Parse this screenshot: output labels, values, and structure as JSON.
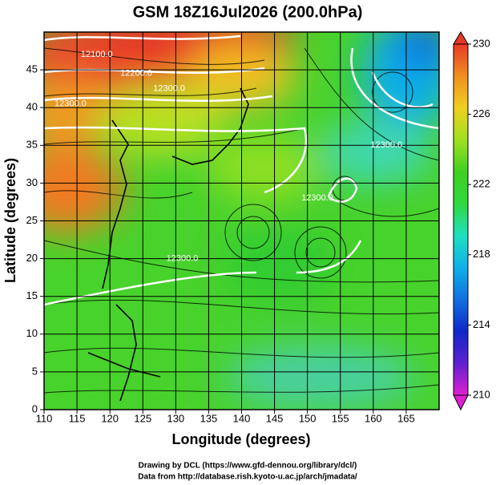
{
  "chart_data": {
    "type": "map",
    "title": "GSM 18Z16Jul2026 (200.0hPa)",
    "x_label": "Longitude (degrees)",
    "y_label": "Latitude  (degrees)",
    "xlim": [
      110,
      170
    ],
    "xticks": [
      110,
      115,
      120,
      125,
      130,
      135,
      140,
      145,
      150,
      155,
      160,
      165
    ],
    "ylim": [
      0,
      50
    ],
    "yticks": [
      0,
      5,
      10,
      15,
      20,
      25,
      30,
      35,
      40,
      45
    ],
    "grid": true,
    "colorbar": {
      "lim": [
        210,
        230
      ],
      "ticks": [
        210,
        214,
        218,
        222,
        226,
        230
      ],
      "colors": [
        "#e020d0",
        "#6020d0",
        "#1028c8",
        "#1070e0",
        "#10b0e8",
        "#20e0c0",
        "#30d840",
        "#40d020",
        "#a0e020",
        "#f0d020",
        "#f09020",
        "#e83828"
      ]
    },
    "contour_labels": [
      {
        "text": "12100.0",
        "lon": 118,
        "lat": 47
      },
      {
        "text": "12200.0",
        "lon": 124,
        "lat": 44.5
      },
      {
        "text": "12300.0",
        "lon": 129,
        "lat": 42.5
      },
      {
        "text": "12300.0",
        "lon": 114,
        "lat": 40.5
      },
      {
        "text": "12300.0",
        "lon": 162,
        "lat": 35
      },
      {
        "text": "12300.0",
        "lon": 151.5,
        "lat": 28
      },
      {
        "text": "12300.0",
        "lon": 131,
        "lat": 20
      }
    ],
    "footer": [
      "Drawing by DCL (https://www.gfd-dennou.org/library/dcl/)",
      "Data from http://database.rish.kyoto-u.ac.jp/arch/jmadata/"
    ]
  }
}
